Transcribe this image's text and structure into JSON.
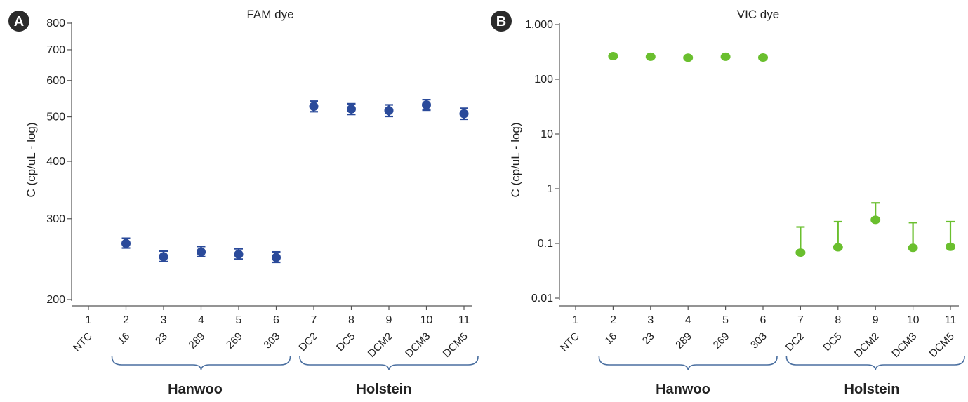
{
  "chart_data": [
    {
      "type": "scatter",
      "panel_label": "A",
      "title": "FAM dye",
      "ylabel": "C (cp/uL - log)",
      "yscale": "log",
      "ylim": [
        200,
        800
      ],
      "yticks": [
        "200",
        "300",
        "400",
        "500",
        "600",
        "700",
        "800"
      ],
      "ytick_values": [
        200,
        300,
        400,
        500,
        600,
        700,
        800
      ],
      "x_numbers": [
        "1",
        "2",
        "3",
        "4",
        "5",
        "6",
        "7",
        "8",
        "9",
        "10",
        "11"
      ],
      "categories": [
        "NTC",
        "16",
        "23",
        "289",
        "269",
        "303",
        "DC2",
        "DC5",
        "DCM2",
        "DCM3",
        "DCM5"
      ],
      "color": "#2a4a9a",
      "points": [
        {
          "x": 2,
          "y": 265,
          "lo": 259,
          "hi": 272
        },
        {
          "x": 3,
          "y": 248,
          "lo": 242,
          "hi": 255
        },
        {
          "x": 4,
          "y": 254,
          "lo": 248,
          "hi": 261
        },
        {
          "x": 5,
          "y": 251,
          "lo": 245,
          "hi": 258
        },
        {
          "x": 6,
          "y": 247,
          "lo": 241,
          "hi": 254
        },
        {
          "x": 7,
          "y": 527,
          "lo": 513,
          "hi": 541
        },
        {
          "x": 8,
          "y": 520,
          "lo": 506,
          "hi": 534
        },
        {
          "x": 9,
          "y": 516,
          "lo": 501,
          "hi": 531
        },
        {
          "x": 10,
          "y": 531,
          "lo": 517,
          "hi": 545
        },
        {
          "x": 11,
          "y": 508,
          "lo": 494,
          "hi": 522
        }
      ],
      "groups": [
        {
          "label": "Hanwoo",
          "from": 2,
          "to": 6
        },
        {
          "label": "Holstein",
          "from": 7,
          "to": 11
        }
      ]
    },
    {
      "type": "scatter",
      "panel_label": "B",
      "title": "VIC dye",
      "ylabel": "C (cp/uL - log)",
      "yscale": "log",
      "ylim": [
        0.01,
        1000
      ],
      "yticks": [
        "0.01",
        "0.1",
        "1",
        "10",
        "100",
        "1,000"
      ],
      "ytick_values": [
        0.01,
        0.1,
        1,
        10,
        100,
        1000
      ],
      "x_numbers": [
        "1",
        "2",
        "3",
        "4",
        "5",
        "6",
        "7",
        "8",
        "9",
        "10",
        "11"
      ],
      "categories": [
        "NTC",
        "16",
        "23",
        "289",
        "269",
        "303",
        "DC2",
        "DC5",
        "DCM2",
        "DCM3",
        "DCM5"
      ],
      "color": "#6abf2e",
      "points": [
        {
          "x": 2,
          "y": 265
        },
        {
          "x": 3,
          "y": 258
        },
        {
          "x": 4,
          "y": 248
        },
        {
          "x": 5,
          "y": 258
        },
        {
          "x": 6,
          "y": 250
        },
        {
          "x": 7,
          "y": 0.068,
          "hi": 0.2
        },
        {
          "x": 8,
          "y": 0.085,
          "hi": 0.25
        },
        {
          "x": 9,
          "y": 0.27,
          "hi": 0.55
        },
        {
          "x": 10,
          "y": 0.083,
          "hi": 0.24
        },
        {
          "x": 11,
          "y": 0.087,
          "hi": 0.25
        }
      ],
      "groups": [
        {
          "label": "Hanwoo",
          "from": 2,
          "to": 6
        },
        {
          "label": "Holstein",
          "from": 7,
          "to": 11
        }
      ]
    }
  ]
}
